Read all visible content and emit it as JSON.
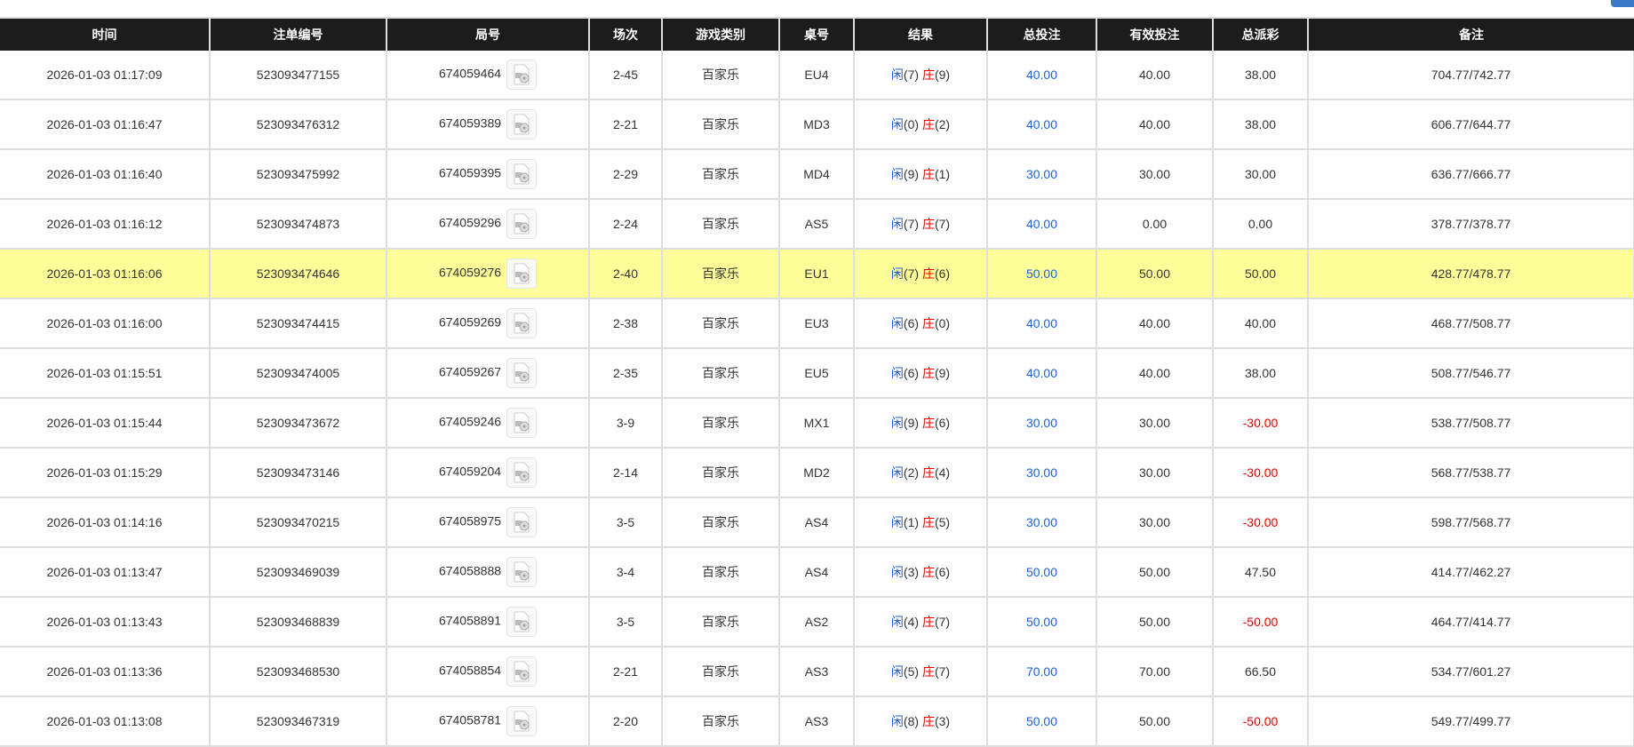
{
  "headers": [
    "时间",
    "注单编号",
    "局号",
    "场次",
    "游戏类别",
    "桌号",
    "结果",
    "总投注",
    "有效投注",
    "总派彩",
    "备注"
  ],
  "player_label": "闲",
  "banker_label": "庄",
  "colors": {
    "header_bg": "#1c1c1c",
    "blue": "#1a5fd6",
    "red": "#e00000",
    "highlight": "#ffff99"
  },
  "rows": [
    {
      "time": "2026-01-03 01:17:09",
      "bet_id": "523093477155",
      "round": "674059464",
      "shoe": "2-45",
      "game": "百家乐",
      "table": "EU4",
      "p": "(7)",
      "b": "(9)",
      "bet": "40.00",
      "valid": "40.00",
      "payout": "38.00",
      "neg": false,
      "note": "704.77/742.77"
    },
    {
      "time": "2026-01-03 01:16:47",
      "bet_id": "523093476312",
      "round": "674059389",
      "shoe": "2-21",
      "game": "百家乐",
      "table": "MD3",
      "p": "(0)",
      "b": "(2)",
      "bet": "40.00",
      "valid": "40.00",
      "payout": "38.00",
      "neg": false,
      "note": "606.77/644.77"
    },
    {
      "time": "2026-01-03 01:16:40",
      "bet_id": "523093475992",
      "round": "674059395",
      "shoe": "2-29",
      "game": "百家乐",
      "table": "MD4",
      "p": "(9)",
      "b": "(1)",
      "bet": "30.00",
      "valid": "30.00",
      "payout": "30.00",
      "neg": false,
      "note": "636.77/666.77"
    },
    {
      "time": "2026-01-03 01:16:12",
      "bet_id": "523093474873",
      "round": "674059296",
      "shoe": "2-24",
      "game": "百家乐",
      "table": "AS5",
      "p": "(7)",
      "b": "(7)",
      "bet": "40.00",
      "valid": "0.00",
      "payout": "0.00",
      "neg": false,
      "note": "378.77/378.77"
    },
    {
      "time": "2026-01-03 01:16:06",
      "bet_id": "523093474646",
      "round": "674059276",
      "shoe": "2-40",
      "game": "百家乐",
      "table": "EU1",
      "p": "(7)",
      "b": "(6)",
      "bet": "50.00",
      "valid": "50.00",
      "payout": "50.00",
      "neg": false,
      "note": "428.77/478.77",
      "highlight": true
    },
    {
      "time": "2026-01-03 01:16:00",
      "bet_id": "523093474415",
      "round": "674059269",
      "shoe": "2-38",
      "game": "百家乐",
      "table": "EU3",
      "p": "(6)",
      "b": "(0)",
      "bet": "40.00",
      "valid": "40.00",
      "payout": "40.00",
      "neg": false,
      "note": "468.77/508.77"
    },
    {
      "time": "2026-01-03 01:15:51",
      "bet_id": "523093474005",
      "round": "674059267",
      "shoe": "2-35",
      "game": "百家乐",
      "table": "EU5",
      "p": "(6)",
      "b": "(9)",
      "bet": "40.00",
      "valid": "40.00",
      "payout": "38.00",
      "neg": false,
      "note": "508.77/546.77"
    },
    {
      "time": "2026-01-03 01:15:44",
      "bet_id": "523093473672",
      "round": "674059246",
      "shoe": "3-9",
      "game": "百家乐",
      "table": "MX1",
      "p": "(9)",
      "b": "(6)",
      "bet": "30.00",
      "valid": "30.00",
      "payout": "-30.00",
      "neg": true,
      "note": "538.77/508.77"
    },
    {
      "time": "2026-01-03 01:15:29",
      "bet_id": "523093473146",
      "round": "674059204",
      "shoe": "2-14",
      "game": "百家乐",
      "table": "MD2",
      "p": "(2)",
      "b": "(4)",
      "bet": "30.00",
      "valid": "30.00",
      "payout": "-30.00",
      "neg": true,
      "note": "568.77/538.77"
    },
    {
      "time": "2026-01-03 01:14:16",
      "bet_id": "523093470215",
      "round": "674058975",
      "shoe": "3-5",
      "game": "百家乐",
      "table": "AS4",
      "p": "(1)",
      "b": "(5)",
      "bet": "30.00",
      "valid": "30.00",
      "payout": "-30.00",
      "neg": true,
      "note": "598.77/568.77"
    },
    {
      "time": "2026-01-03 01:13:47",
      "bet_id": "523093469039",
      "round": "674058888",
      "shoe": "3-4",
      "game": "百家乐",
      "table": "AS4",
      "p": "(3)",
      "b": "(6)",
      "bet": "50.00",
      "valid": "50.00",
      "payout": "47.50",
      "neg": false,
      "note": "414.77/462.27"
    },
    {
      "time": "2026-01-03 01:13:43",
      "bet_id": "523093468839",
      "round": "674058891",
      "shoe": "3-5",
      "game": "百家乐",
      "table": "AS2",
      "p": "(4)",
      "b": "(7)",
      "bet": "50.00",
      "valid": "50.00",
      "payout": "-50.00",
      "neg": true,
      "note": "464.77/414.77"
    },
    {
      "time": "2026-01-03 01:13:36",
      "bet_id": "523093468530",
      "round": "674058854",
      "shoe": "2-21",
      "game": "百家乐",
      "table": "AS3",
      "p": "(5)",
      "b": "(7)",
      "bet": "70.00",
      "valid": "70.00",
      "payout": "66.50",
      "neg": false,
      "note": "534.77/601.27"
    },
    {
      "time": "2026-01-03 01:13:08",
      "bet_id": "523093467319",
      "round": "674058781",
      "shoe": "2-20",
      "game": "百家乐",
      "table": "AS3",
      "p": "(8)",
      "b": "(3)",
      "bet": "50.00",
      "valid": "50.00",
      "payout": "-50.00",
      "neg": true,
      "note": "549.77/499.77"
    }
  ]
}
